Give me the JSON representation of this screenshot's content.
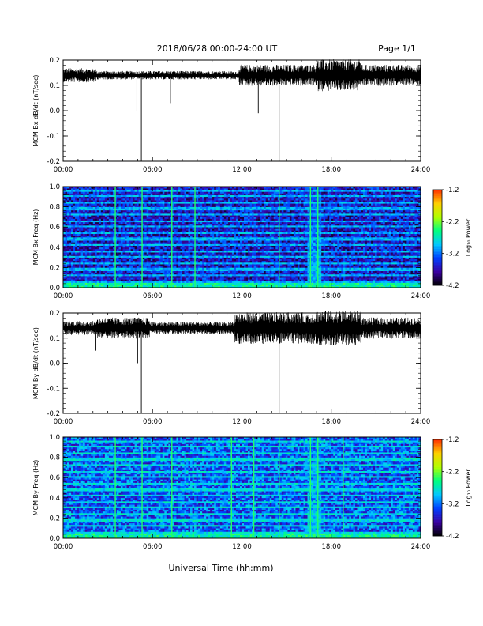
{
  "header": {
    "date_range": "2018/06/28  00:00-24:00 UT",
    "page": "Page 1/1"
  },
  "footer": {
    "xlabel": "Universal Time (hh:mm)"
  },
  "colorbar": {
    "label": "Log₁₀ Power",
    "ticks": [
      "-1.2",
      "-2.2",
      "-3.2",
      "-4.2"
    ],
    "range": [
      -4.2,
      -1.2
    ],
    "colors": [
      "#000000",
      "#3a00a0",
      "#0040ff",
      "#00c8ff",
      "#00ff80",
      "#b0ff00",
      "#ffd000",
      "#ff3000"
    ]
  },
  "chart_data": [
    {
      "type": "line",
      "title": "",
      "ylabel": "MCM Bx dB/dt (nT/sec)",
      "xlabel": "",
      "xticks": [
        "00:00",
        "06:00",
        "12:00",
        "18:00",
        "24:00"
      ],
      "yticks": [
        "0.2",
        "0.1",
        "0.0",
        "-0.1",
        "-0.2"
      ],
      "xlim_hours": [
        0,
        24
      ],
      "ylim": [
        -0.2,
        0.2
      ],
      "baseline": 0.14,
      "spikes": [
        {
          "t_hours": 5.25,
          "min": -0.2
        },
        {
          "t_hours": 14.5,
          "min": -0.2
        },
        {
          "t_hours": 13.1,
          "min": -0.01
        },
        {
          "t_hours": 4.95,
          "min": 0.0
        },
        {
          "t_hours": 7.2,
          "min": 0.03
        }
      ],
      "activity": [
        {
          "from_hours": 0.0,
          "to_hours": 2.2,
          "amplitude": 0.02
        },
        {
          "from_hours": 2.2,
          "to_hours": 11.8,
          "amplitude": 0.012
        },
        {
          "from_hours": 11.8,
          "to_hours": 17.0,
          "amplitude": 0.03
        },
        {
          "from_hours": 17.0,
          "to_hours": 20.0,
          "amplitude": 0.045
        },
        {
          "from_hours": 20.0,
          "to_hours": 24.0,
          "amplitude": 0.03
        }
      ]
    },
    {
      "type": "heatmap",
      "title": "",
      "ylabel": "MCM Bx Freq (Hz)",
      "xlabel": "",
      "xticks": [
        "00:00",
        "06:00",
        "12:00",
        "18:00",
        "24:00"
      ],
      "yticks": [
        "1.0",
        "0.8",
        "0.6",
        "0.4",
        "0.2",
        "0.0"
      ],
      "xlim_hours": [
        0,
        24
      ],
      "ylim": [
        0.0,
        1.0
      ],
      "zlim": [
        -4.2,
        -1.2
      ],
      "harmonic_spacing_hz": 0.06,
      "background_log_power": -3.6,
      "harmonic_log_power": -3.0,
      "bright_columns_hours": [
        3.5,
        5.3,
        7.3,
        8.85,
        14.5,
        16.6,
        17.1
      ],
      "broadband_bursts": [
        {
          "from_hours": 16.4,
          "to_hours": 17.3,
          "log_power": -2.9
        }
      ]
    },
    {
      "type": "line",
      "title": "",
      "ylabel": "MCM By dB/dt (nT/sec)",
      "xlabel": "",
      "xticks": [
        "00:00",
        "06:00",
        "12:00",
        "18:00",
        "24:00"
      ],
      "yticks": [
        "0.2",
        "0.1",
        "0.0",
        "-0.1",
        "-0.2"
      ],
      "xlim_hours": [
        0,
        24
      ],
      "ylim": [
        -0.2,
        0.2
      ],
      "baseline": 0.14,
      "spikes": [
        {
          "t_hours": 5.25,
          "min": -0.2
        },
        {
          "t_hours": 14.5,
          "min": -0.2
        },
        {
          "t_hours": 5.0,
          "min": 0.0
        },
        {
          "t_hours": 2.2,
          "min": 0.05
        }
      ],
      "activity": [
        {
          "from_hours": 0.0,
          "to_hours": 2.2,
          "amplitude": 0.02
        },
        {
          "from_hours": 2.2,
          "to_hours": 5.8,
          "amplitude": 0.03
        },
        {
          "from_hours": 5.8,
          "to_hours": 11.5,
          "amplitude": 0.018
        },
        {
          "from_hours": 11.5,
          "to_hours": 17.0,
          "amplitude": 0.045
        },
        {
          "from_hours": 17.0,
          "to_hours": 20.0,
          "amplitude": 0.05
        },
        {
          "from_hours": 20.0,
          "to_hours": 24.0,
          "amplitude": 0.03
        }
      ]
    },
    {
      "type": "heatmap",
      "title": "",
      "ylabel": "MCM By Freq (Hz)",
      "xlabel": "",
      "xticks": [
        "00:00",
        "06:00",
        "12:00",
        "18:00",
        "24:00"
      ],
      "yticks": [
        "1.0",
        "0.8",
        "0.6",
        "0.4",
        "0.2",
        "0.0"
      ],
      "xlim_hours": [
        0,
        24
      ],
      "ylim": [
        0.0,
        1.0
      ],
      "zlim": [
        -4.2,
        -1.2
      ],
      "harmonic_spacing_hz": 0.06,
      "background_log_power": -3.3,
      "harmonic_log_power": -2.8,
      "bright_columns_hours": [
        3.5,
        5.3,
        7.3,
        11.3,
        12.8,
        14.5,
        16.6,
        17.1,
        18.8
      ],
      "broadband_bursts": [
        {
          "from_hours": 16.4,
          "to_hours": 17.3,
          "log_power": -2.8
        }
      ]
    }
  ]
}
